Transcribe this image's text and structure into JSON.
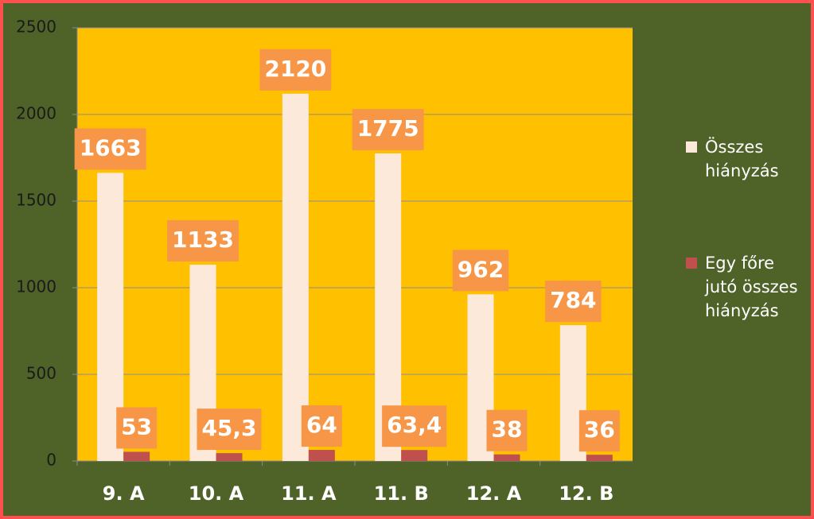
{
  "chart_data": {
    "type": "bar",
    "categories": [
      "9. A",
      "10. A",
      "11. A",
      "11. B",
      "12. A",
      "12. B"
    ],
    "series": [
      {
        "name": "Összes hiányzás",
        "color": "#fde9d9",
        "values": [
          1663,
          1133,
          2120,
          1775,
          962,
          784
        ]
      },
      {
        "name": "Egy főre jutó összes hiányzás",
        "color": "#c0504d",
        "values": [
          53,
          45.3,
          64,
          63.4,
          38,
          36
        ],
        "value_labels": [
          "53",
          "45,3",
          "64",
          "63,4",
          "38",
          "36"
        ]
      }
    ],
    "ylim": [
      0,
      2500
    ],
    "yticks": [
      0,
      500,
      1000,
      1500,
      2000,
      2500
    ],
    "grid": true,
    "legend": "right"
  }
}
